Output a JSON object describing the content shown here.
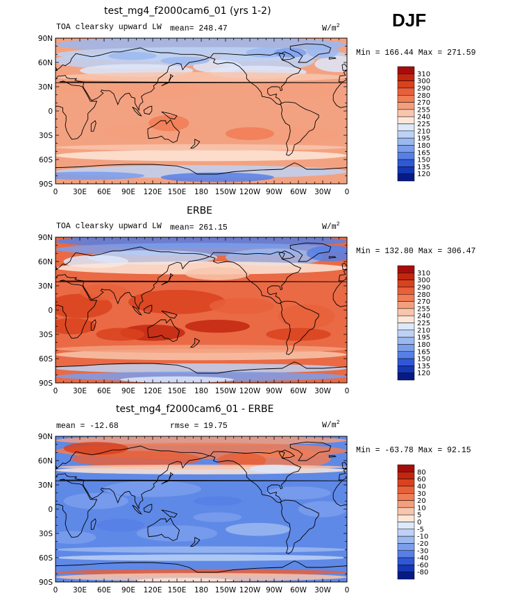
{
  "page": {
    "season": "DJF"
  },
  "panels": [
    {
      "title": "test_mg4_f2000cam6_01 (yrs 1-2)",
      "left_label": "TOA clearsky upward LW",
      "stat_label": "mean= 248.47",
      "units": "W/m",
      "units_sup": "2",
      "minmax": "Min = 166.44 Max = 271.59"
    },
    {
      "title": "ERBE",
      "left_label": "TOA clearsky upward LW",
      "stat_label": "mean= 261.15",
      "units": "W/m",
      "units_sup": "2",
      "minmax": "Min = 132.80 Max = 306.47"
    },
    {
      "title": "test_mg4_f2000cam6_01 - ERBE",
      "left_label": "mean = -12.68",
      "stat_label": "rmse =  19.75",
      "units": "W/m",
      "units_sup": "2",
      "minmax": "Min = -63.78 Max =  92.15"
    }
  ],
  "chart_data": [
    {
      "type": "heatmap",
      "title": "test_mg4_f2000cam6_01 (yrs 1-2)",
      "field": "TOA clearsky upward LW",
      "units": "W/m2",
      "mean": 248.47,
      "min": 166.44,
      "max": 271.59,
      "x_ticks": [
        "0",
        "30E",
        "60E",
        "90E",
        "120E",
        "150E",
        "180",
        "150W",
        "120W",
        "90W",
        "60W",
        "30W",
        "0"
      ],
      "y_ticks": [
        "90N",
        "60N",
        "30N",
        "0",
        "30S",
        "60S",
        "90S"
      ],
      "xlim": [
        0,
        360
      ],
      "ylim": [
        -90,
        90
      ],
      "colorbar_levels": [
        "310",
        "300",
        "290",
        "280",
        "270",
        "255",
        "240",
        "225",
        "210",
        "195",
        "180",
        "165",
        "150",
        "135",
        "120"
      ],
      "colorbar_colors": [
        "#a50d0d",
        "#c2260f",
        "#d9421e",
        "#e8603a",
        "#f07d55",
        "#f39f7e",
        "#f8c6ad",
        "#fde6d8",
        "#dde8fa",
        "#bdd2f5",
        "#9bb9f0",
        "#7a9eec",
        "#5780e6",
        "#3058d6",
        "#1437b4",
        "#061a86"
      ]
    },
    {
      "type": "heatmap",
      "title": "ERBE",
      "field": "TOA clearsky upward LW",
      "units": "W/m2",
      "mean": 261.15,
      "min": 132.8,
      "max": 306.47,
      "x_ticks": [
        "0",
        "30E",
        "60E",
        "90E",
        "120E",
        "150E",
        "180",
        "150W",
        "120W",
        "90W",
        "60W",
        "30W",
        "0"
      ],
      "y_ticks": [
        "90N",
        "60N",
        "30N",
        "0",
        "30S",
        "60S",
        "90S"
      ],
      "xlim": [
        0,
        360
      ],
      "ylim": [
        -90,
        90
      ],
      "colorbar_levels": [
        "310",
        "300",
        "290",
        "280",
        "270",
        "255",
        "240",
        "225",
        "210",
        "195",
        "180",
        "165",
        "150",
        "135",
        "120"
      ],
      "colorbar_colors": [
        "#a50d0d",
        "#c2260f",
        "#d9421e",
        "#e8603a",
        "#f07d55",
        "#f39f7e",
        "#f8c6ad",
        "#fde6d8",
        "#dde8fa",
        "#bdd2f5",
        "#9bb9f0",
        "#7a9eec",
        "#5780e6",
        "#3058d6",
        "#1437b4",
        "#061a86"
      ]
    },
    {
      "type": "heatmap",
      "title": "test_mg4_f2000cam6_01 - ERBE",
      "field": "difference",
      "units": "W/m2",
      "mean": -12.68,
      "rmse": 19.75,
      "min": -63.78,
      "max": 92.15,
      "x_ticks": [
        "0",
        "30E",
        "60E",
        "90E",
        "120E",
        "150E",
        "180",
        "150W",
        "120W",
        "90W",
        "60W",
        "30W",
        "0"
      ],
      "y_ticks": [
        "90N",
        "60N",
        "30N",
        "0",
        "30S",
        "60S",
        "90S"
      ],
      "xlim": [
        0,
        360
      ],
      "ylim": [
        -90,
        90
      ],
      "colorbar_levels": [
        "80",
        "60",
        "40",
        "30",
        "20",
        "10",
        "5",
        "0",
        "-5",
        "-10",
        "-20",
        "-30",
        "-40",
        "-60",
        "-80"
      ],
      "colorbar_colors": [
        "#a50d0d",
        "#c2260f",
        "#d9421e",
        "#e8603a",
        "#f07d55",
        "#f39f7e",
        "#f8c6ad",
        "#fde6d8",
        "#dde8fa",
        "#bdd2f5",
        "#9bb9f0",
        "#7a9eec",
        "#5780e6",
        "#3058d6",
        "#1437b4",
        "#061a86"
      ]
    }
  ]
}
